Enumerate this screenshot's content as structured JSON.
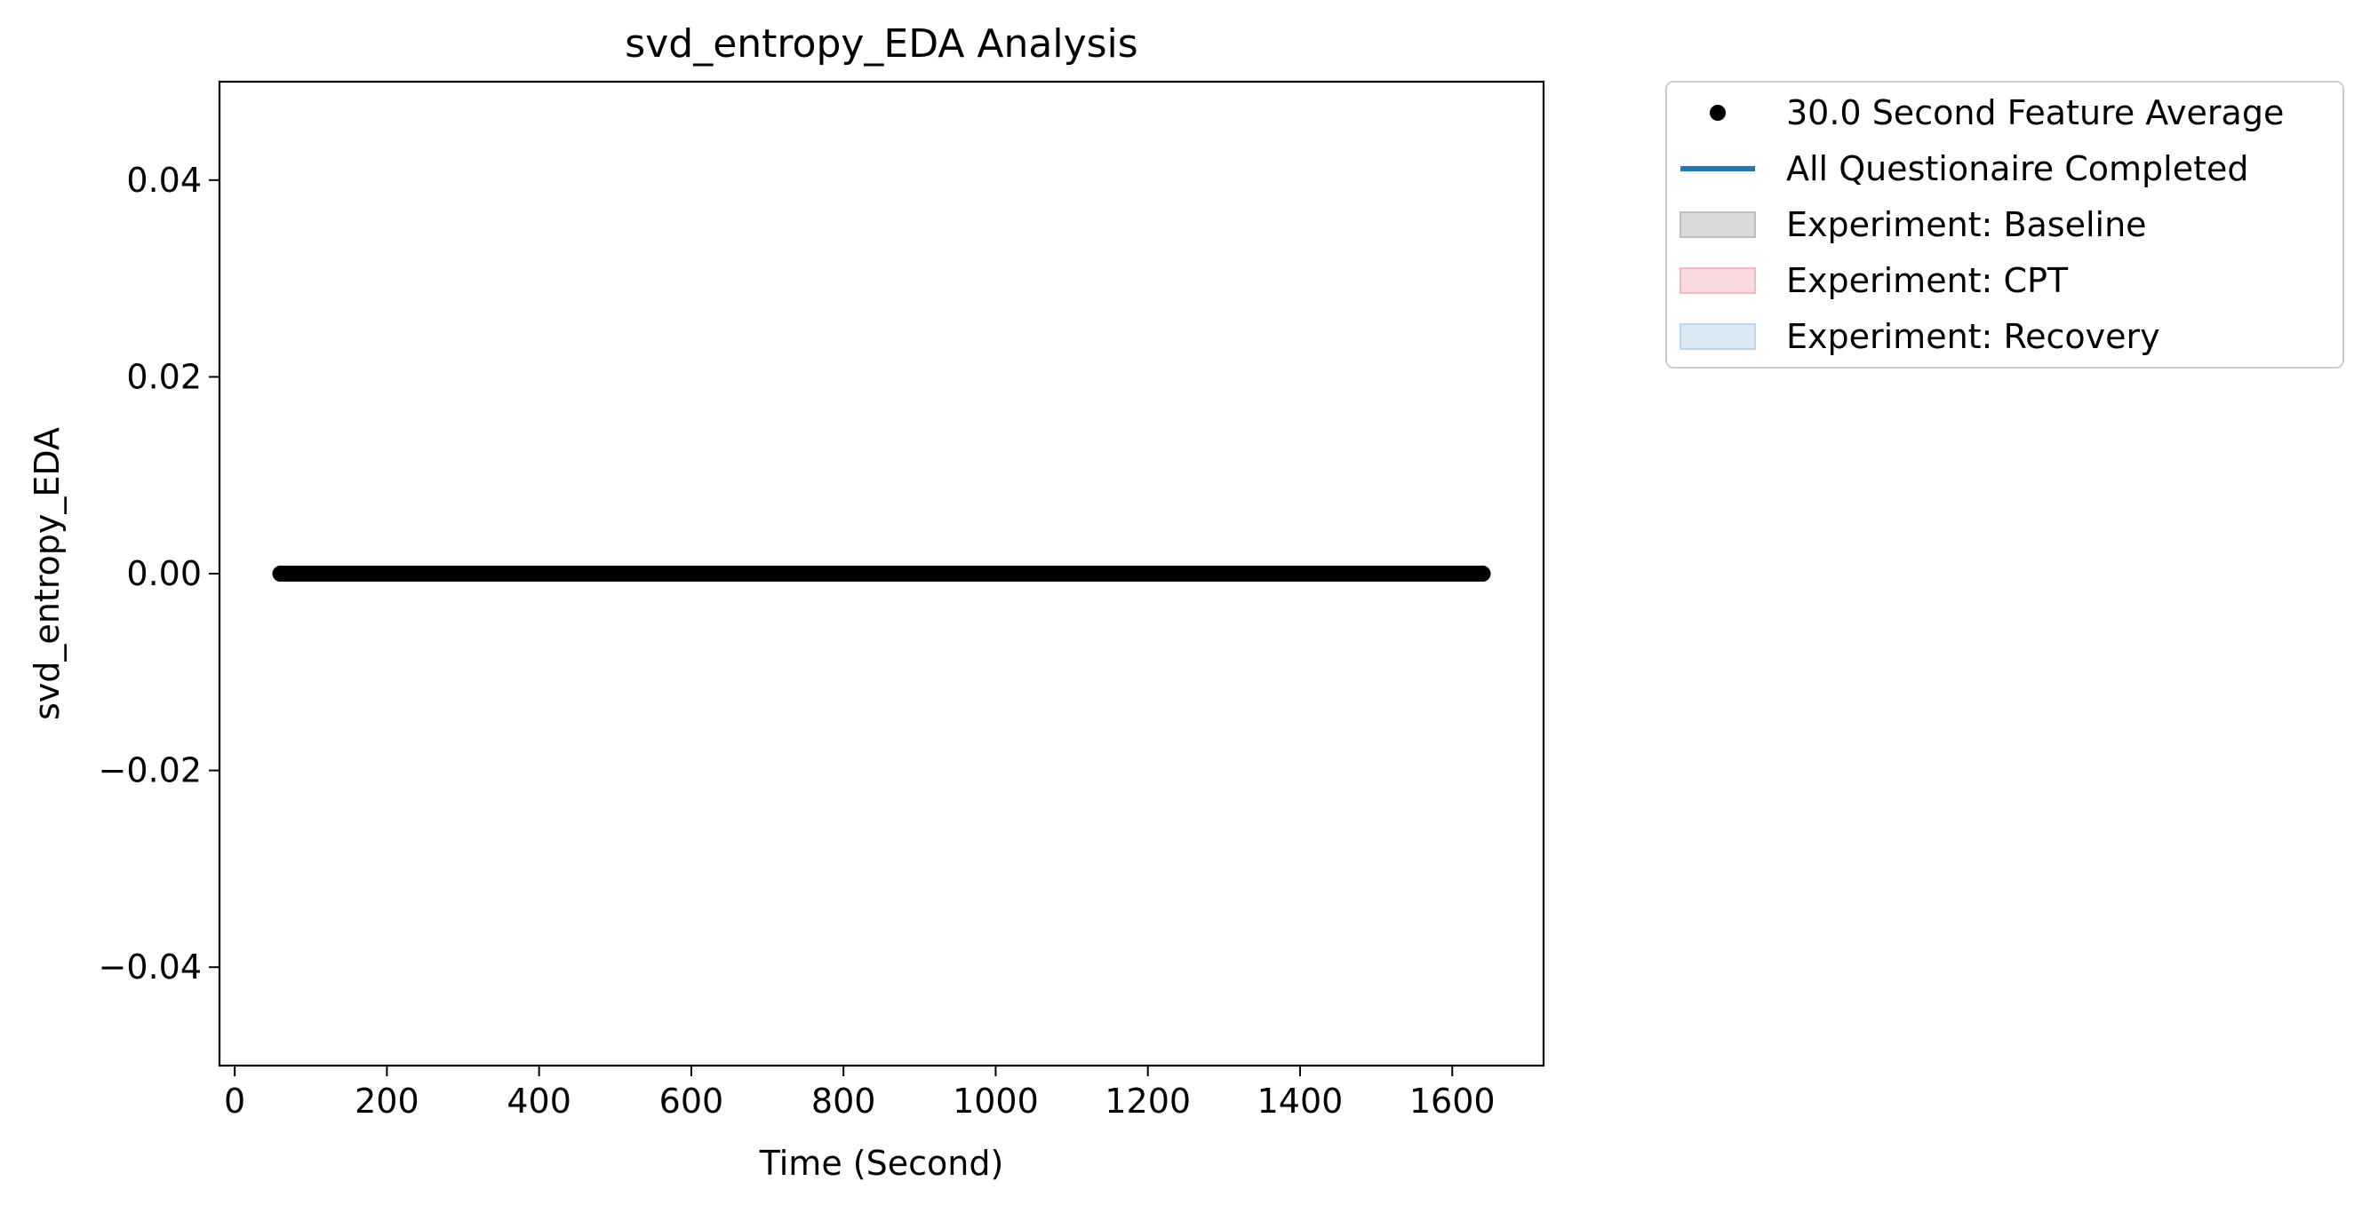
{
  "chart_data": {
    "type": "scatter",
    "title": "svd_entropy_EDA Analysis",
    "xlabel": "Time (Second)",
    "ylabel": "svd_entropy_EDA",
    "xlim": [
      -20,
      1720
    ],
    "ylim": [
      -0.05,
      0.05
    ],
    "x_ticks": [
      0,
      200,
      400,
      600,
      800,
      1000,
      1200,
      1400,
      1600
    ],
    "x_tick_labels": [
      "0",
      "200",
      "400",
      "600",
      "800",
      "1000",
      "1200",
      "1400",
      "1600"
    ],
    "y_ticks": [
      0.04,
      0.02,
      0.0,
      -0.02,
      -0.04
    ],
    "y_tick_labels": [
      "0.04",
      "0.02",
      "0.00",
      "−0.02",
      "−0.04"
    ],
    "grid": false,
    "legend_placement": "outside-upper-right",
    "series": [
      {
        "name": "30.0 Second Feature Average",
        "kind": "points",
        "color": "#000000",
        "x_start": 60,
        "x_end": 1640,
        "x_step": 2,
        "y": 0.0
      }
    ],
    "legend": [
      {
        "label": "30.0 Second Feature Average",
        "kind": "marker",
        "color": "#000000"
      },
      {
        "label": "All Questionaire Completed",
        "kind": "line",
        "color": "#1f77b4"
      },
      {
        "label": "Experiment: Baseline",
        "kind": "patch",
        "color": "#d9d9d9",
        "edge": "#bdbdbd"
      },
      {
        "label": "Experiment: CPT",
        "kind": "patch",
        "color": "#f9dade",
        "edge": "#f2b9c0"
      },
      {
        "label": "Experiment: Recovery",
        "kind": "patch",
        "color": "#dce9f5",
        "edge": "#bcd5ea"
      }
    ]
  }
}
